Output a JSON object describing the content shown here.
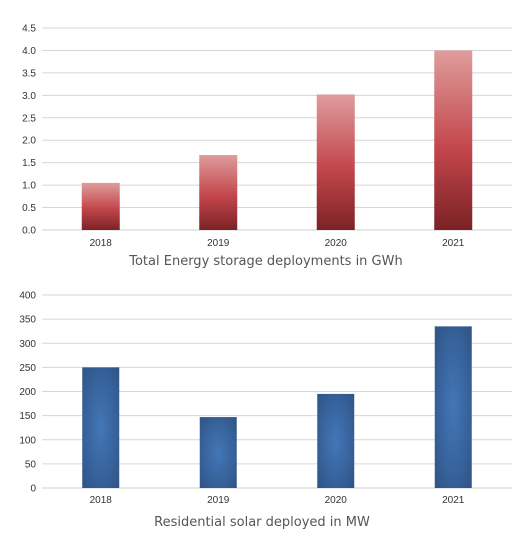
{
  "chart_data": [
    {
      "type": "bar",
      "title": "Total Energy storage deployments in GWh",
      "categories": [
        "2018",
        "2019",
        "2020",
        "2021"
      ],
      "values": [
        1.05,
        1.67,
        3.02,
        4.0
      ],
      "ylim": [
        0,
        4.5
      ],
      "yticks": [
        "0.0",
        "0.5",
        "1.0",
        "1.5",
        "2.0",
        "2.5",
        "3.0",
        "3.5",
        "4.0",
        "4.5"
      ],
      "grid": true,
      "colors": {
        "top": "#df9c9c",
        "mid": "#c2464b",
        "bottom": "#7b2226"
      }
    },
    {
      "type": "bar",
      "title": "Residential solar deployed in MW",
      "categories": [
        "2018",
        "2019",
        "2020",
        "2021"
      ],
      "values": [
        250,
        147,
        195,
        335
      ],
      "ylim": [
        0,
        400
      ],
      "yticks": [
        "0",
        "50",
        "100",
        "150",
        "200",
        "250",
        "300",
        "350",
        "400"
      ],
      "grid": true,
      "colors": {
        "edge": "#2e5183",
        "center": "#4377b8"
      }
    }
  ]
}
